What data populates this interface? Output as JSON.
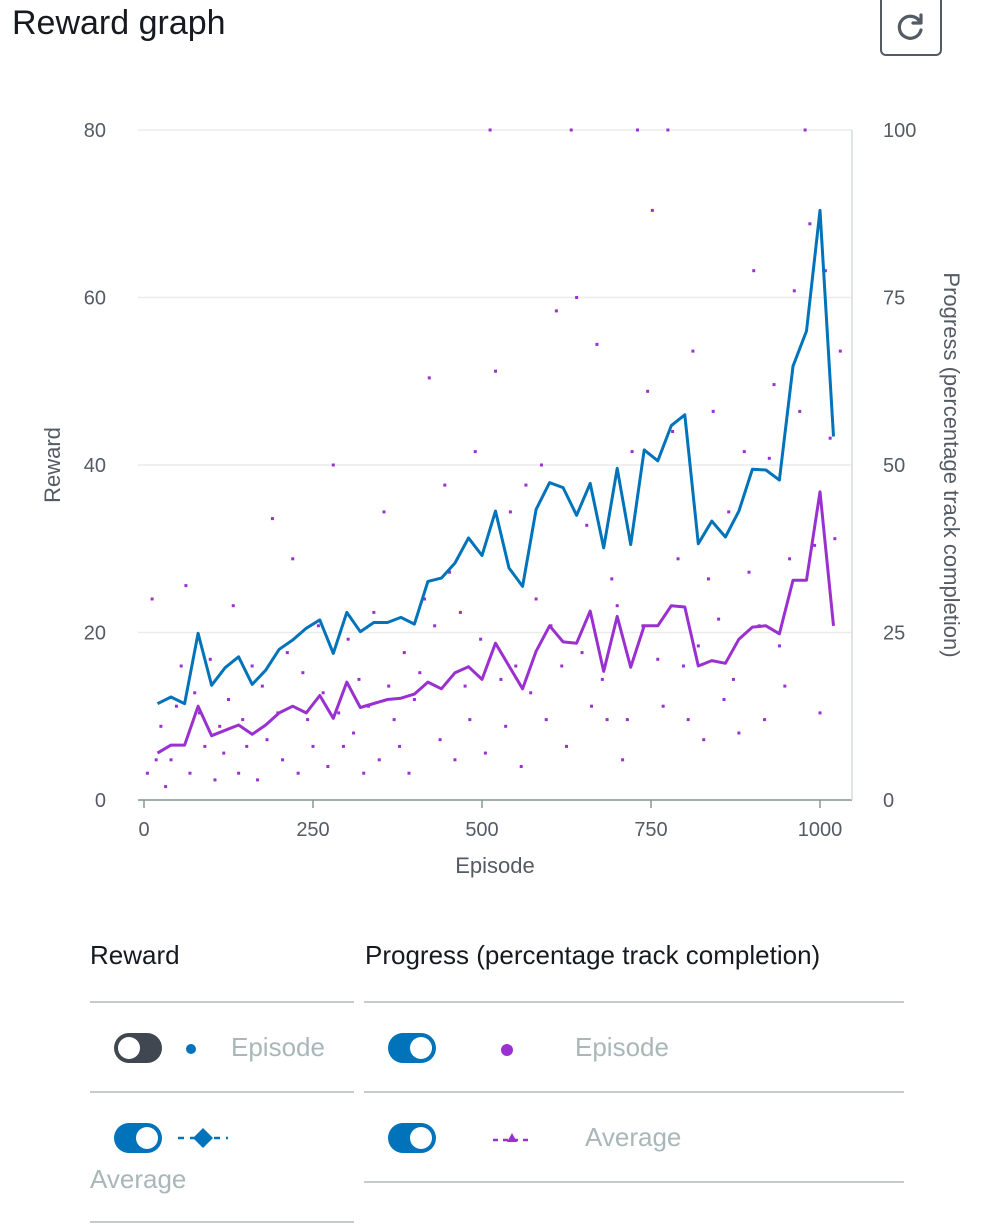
{
  "header": {
    "title": "Reward graph",
    "refresh_icon": "refresh-icon"
  },
  "colors": {
    "reward": "#0073bb",
    "progress": "#9b30d0",
    "grid": "#e9ebed",
    "axis_text": "#545b64"
  },
  "chart_data": {
    "type": "line",
    "title": "",
    "xlabel": "Episode",
    "ylabel": "Reward",
    "y2label": "Progress (percentage track completion)",
    "xlim": [
      0,
      1040
    ],
    "ylim": [
      0,
      80
    ],
    "y2lim": [
      0,
      100
    ],
    "xticks": [
      0,
      250,
      500,
      750,
      1000
    ],
    "yticks": [
      0,
      20,
      40,
      60,
      80
    ],
    "y2ticks": [
      0,
      25,
      50,
      75,
      100
    ],
    "grid": true,
    "series": [
      {
        "name": "Average",
        "axis": "left",
        "kind": "line",
        "x": [
          20,
          40,
          60,
          80,
          100,
          120,
          140,
          160,
          180,
          200,
          220,
          240,
          260,
          280,
          300,
          320,
          340,
          360,
          380,
          400,
          420,
          440,
          460,
          480,
          500,
          520,
          540,
          560,
          580,
          600,
          620,
          640,
          660,
          680,
          700,
          720,
          740,
          760,
          780,
          800,
          820,
          840,
          860,
          880,
          900,
          920,
          940,
          960,
          980,
          1000,
          1020
        ],
        "y": [
          11.5,
          12.3,
          11.5,
          19.9,
          13.7,
          15.8,
          17.1,
          13.8,
          15.5,
          18.0,
          19.1,
          20.5,
          21.5,
          17.5,
          22.4,
          20.1,
          21.2,
          21.2,
          21.8,
          21.0,
          26.1,
          26.5,
          28.3,
          31.3,
          29.2,
          34.5,
          27.7,
          25.5,
          34.7,
          37.9,
          37.3,
          34.0,
          37.8,
          30.1,
          39.6,
          30.5,
          41.8,
          40.5,
          44.7,
          46.0,
          30.6,
          33.3,
          31.4,
          34.5,
          39.5,
          39.4,
          38.2,
          51.8,
          56.0,
          70.4,
          43.4
        ]
      },
      {
        "name": "Average",
        "axis": "right",
        "kind": "line",
        "x": [
          20,
          40,
          60,
          80,
          100,
          120,
          140,
          160,
          180,
          200,
          220,
          240,
          260,
          280,
          300,
          320,
          340,
          360,
          380,
          400,
          420,
          440,
          460,
          480,
          500,
          520,
          540,
          560,
          580,
          600,
          620,
          640,
          660,
          680,
          700,
          720,
          740,
          760,
          780,
          800,
          820,
          840,
          860,
          880,
          900,
          920,
          940,
          960,
          980,
          1000,
          1020
        ],
        "y": [
          7.0,
          8.2,
          8.2,
          14.0,
          9.6,
          10.4,
          11.2,
          9.8,
          11.2,
          13.0,
          14.0,
          13.0,
          15.6,
          12.2,
          17.6,
          13.8,
          14.4,
          15.0,
          15.2,
          15.8,
          17.6,
          16.6,
          19.0,
          19.9,
          18.0,
          23.4,
          20.0,
          16.6,
          22.2,
          26.0,
          23.6,
          23.4,
          28.2,
          19.2,
          27.4,
          19.8,
          26.0,
          26.0,
          29.0,
          28.8,
          20.0,
          20.8,
          20.4,
          24.0,
          25.8,
          26.0,
          24.8,
          32.8,
          32.8,
          46.0,
          26.0
        ]
      },
      {
        "name": "Episode",
        "axis": "right",
        "kind": "scatter",
        "x": [
          5,
          12,
          18,
          25,
          32,
          40,
          48,
          55,
          62,
          68,
          75,
          82,
          90,
          98,
          105,
          112,
          118,
          125,
          132,
          140,
          146,
          152,
          160,
          168,
          175,
          182,
          190,
          198,
          205,
          212,
          220,
          228,
          235,
          242,
          250,
          258,
          265,
          272,
          280,
          288,
          295,
          302,
          310,
          318,
          325,
          332,
          340,
          348,
          355,
          362,
          370,
          378,
          385,
          392,
          400,
          408,
          415,
          422,
          430,
          438,
          445,
          452,
          460,
          468,
          475,
          482,
          490,
          498,
          505,
          512,
          520,
          528,
          535,
          542,
          550,
          558,
          565,
          572,
          580,
          588,
          595,
          602,
          610,
          618,
          625,
          632,
          640,
          648,
          655,
          662,
          670,
          678,
          685,
          692,
          700,
          708,
          715,
          722,
          730,
          738,
          745,
          752,
          760,
          768,
          775,
          782,
          790,
          798,
          805,
          812,
          820,
          828,
          835,
          842,
          850,
          858,
          865,
          872,
          880,
          888,
          895,
          902,
          910,
          918,
          925,
          932,
          940,
          948,
          955,
          962,
          970,
          978,
          985,
          992,
          1000,
          1008,
          1015,
          1022,
          1030
        ],
        "y": [
          4,
          30,
          6,
          11,
          2,
          6,
          14,
          20,
          32,
          4,
          16,
          13,
          8,
          21,
          3,
          11,
          7,
          15,
          29,
          4,
          12,
          8,
          20,
          3,
          17,
          9,
          42,
          13,
          6,
          22,
          36,
          4,
          19,
          12,
          8,
          26,
          16,
          5,
          50,
          13,
          8,
          24,
          10,
          18,
          4,
          14,
          28,
          6,
          43,
          17,
          12,
          8,
          22,
          4,
          15,
          19,
          30,
          63,
          26,
          9,
          47,
          34,
          6,
          28,
          17,
          12,
          52,
          24,
          7,
          100,
          64,
          18,
          11,
          43,
          20,
          5,
          47,
          16,
          30,
          50,
          12,
          26,
          73,
          20,
          8,
          100,
          75,
          22,
          41,
          14,
          68,
          18,
          12,
          33,
          29,
          6,
          12,
          52,
          100,
          26,
          61,
          88,
          21,
          14,
          100,
          55,
          36,
          20,
          12,
          67,
          23,
          9,
          33,
          58,
          27,
          15,
          43,
          18,
          10,
          52,
          34,
          79,
          26,
          12,
          51,
          62,
          23,
          17,
          36,
          76,
          58,
          100,
          86,
          38,
          13,
          79,
          54,
          39,
          67
        ]
      }
    ]
  },
  "legend": {
    "reward_heading": "Reward",
    "progress_heading": "Progress (percentage track completion)",
    "reward_episode_label": "Episode",
    "reward_episode_on": false,
    "reward_average_label": "Average",
    "reward_average_on": true,
    "progress_episode_label": "Episode",
    "progress_episode_on": true,
    "progress_average_label": "Average",
    "progress_average_on": true
  }
}
